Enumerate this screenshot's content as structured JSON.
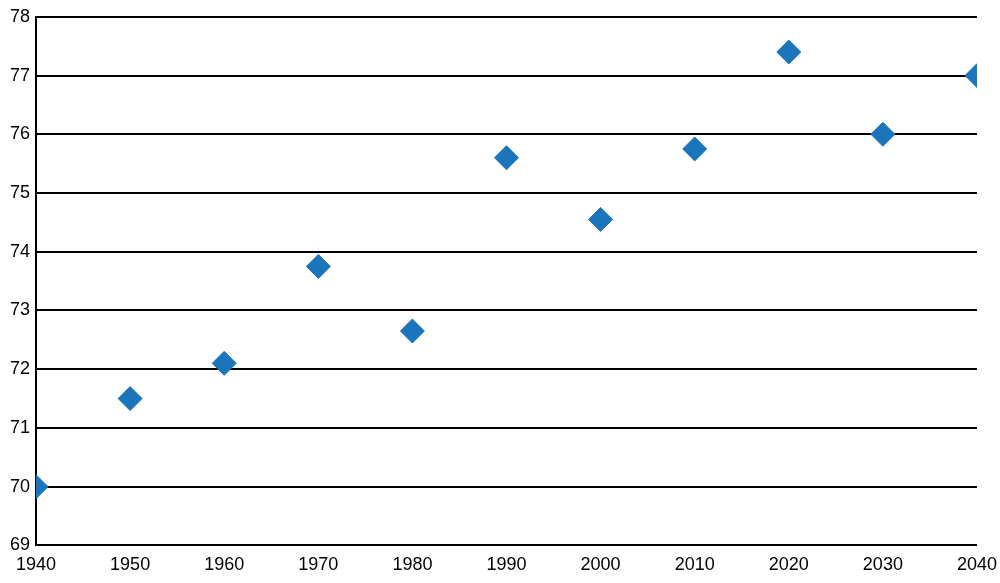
{
  "chart_data": {
    "type": "scatter",
    "x": [
      1940,
      1950,
      1960,
      1970,
      1980,
      1990,
      2000,
      2010,
      2020,
      2030,
      2040
    ],
    "values": [
      70.0,
      71.5,
      72.1,
      73.75,
      72.65,
      75.6,
      74.55,
      75.75,
      77.4,
      76.0,
      77.0
    ],
    "color": "#1b75bb",
    "marker": "diamond",
    "xlim": [
      1940,
      2040
    ],
    "xticks": [
      1940,
      1950,
      1960,
      1970,
      1980,
      1990,
      2000,
      2010,
      2020,
      2030,
      2040
    ],
    "ylim": [
      69,
      78
    ],
    "yticks": [
      69,
      70,
      71,
      72,
      73,
      74,
      75,
      76,
      77,
      78
    ],
    "grid": true
  }
}
